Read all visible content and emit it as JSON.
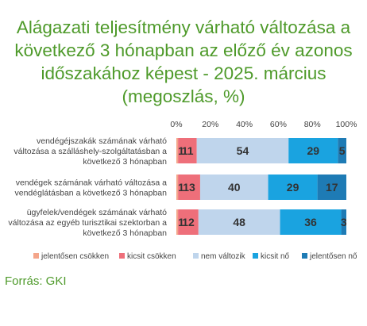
{
  "title_lines": [
    "Alágazati teljesítmény várható változása a",
    "következő 3 hónapban az előző év azonos",
    "időszakához képest - 2025. március",
    "(megoszlás, %)"
  ],
  "source": "Forrás: GKI",
  "chart_data": {
    "type": "bar",
    "orientation": "horizontal",
    "stacked": true,
    "categories": [
      [
        "vendégéjszakák számának várható",
        "változása a szálláshely-szolgáltatásban a",
        "következő 3 hónapban"
      ],
      [
        "vendégek számának várható változása a",
        "vendéglátásban a következő 3 hónapban"
      ],
      [
        "ügyfelek/vendégek számának várható",
        "változása az egyéb turisztikai szektorban a",
        "következő 3 hónapban"
      ]
    ],
    "series": [
      {
        "name": "jelentősen csökken",
        "color": "#f4a58a",
        "values": [
          1,
          1,
          1
        ]
      },
      {
        "name": "kicsit csökken",
        "color": "#ee6f7a",
        "values": [
          11,
          13,
          12
        ]
      },
      {
        "name": "nem változik",
        "color": "#bfd5ec",
        "values": [
          54,
          40,
          48
        ]
      },
      {
        "name": "kicsit nő",
        "color": "#1aa3e0",
        "values": [
          29,
          29,
          36
        ]
      },
      {
        "name": "jelentősen nő",
        "color": "#1e7bb5",
        "values": [
          5,
          17,
          3
        ]
      }
    ],
    "xticks": [
      "0%",
      "20%",
      "40%",
      "60%",
      "80%",
      "100%"
    ],
    "xlim": [
      0,
      100
    ],
    "legend_position": "bottom"
  }
}
